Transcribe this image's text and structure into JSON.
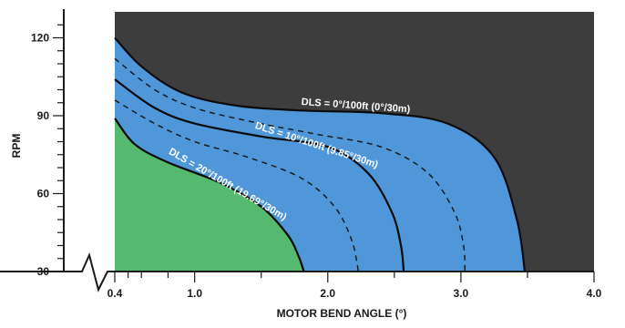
{
  "chart_data": {
    "type": "area",
    "title": "",
    "xlabel": "MOTOR BEND ANGLE (°)",
    "ylabel": "RPM",
    "xlim": [
      0.4,
      4.0
    ],
    "ylim": [
      30,
      130
    ],
    "x_ticks": [
      0.4,
      1.0,
      2.0,
      3.0,
      4.0
    ],
    "x_tick_labels": [
      "0.4",
      "1.0",
      "2.0",
      "3.0",
      "4.0"
    ],
    "y_ticks": [
      30,
      60,
      90,
      120
    ],
    "y_tick_labels": [
      "30",
      "60",
      "90",
      "120"
    ],
    "axis_break": true,
    "colors": {
      "above_curves": "#3d3d3d",
      "between_curves": "#4f97d9",
      "below_curves": "#55b970"
    },
    "series": [
      {
        "name": "DLS = 0°/100ft (0°/30m)",
        "style": "solid",
        "x": [
          0.4,
          0.6,
          0.9,
          1.3,
          1.8,
          2.4,
          2.9,
          3.25,
          3.42,
          3.48
        ],
        "y": [
          120,
          109,
          99,
          94,
          92,
          91,
          87,
          74,
          50,
          30
        ]
      },
      {
        "name": "",
        "style": "dashed",
        "x": [
          0.4,
          0.7,
          1.0,
          1.4,
          1.9,
          2.4,
          2.75,
          2.95,
          3.02,
          3.03
        ],
        "y": [
          112,
          100,
          93,
          88,
          83,
          78,
          68,
          53,
          40,
          30
        ]
      },
      {
        "name": "DLS = 10°/100ft (9.85°/30m)",
        "style": "solid",
        "x": [
          0.4,
          0.7,
          1.0,
          1.5,
          2.0,
          2.3,
          2.48,
          2.55,
          2.57
        ],
        "y": [
          104,
          93,
          87,
          82,
          78,
          68,
          53,
          40,
          30
        ]
      },
      {
        "name": "",
        "style": "dashed",
        "x": [
          0.4,
          0.7,
          1.0,
          1.4,
          1.8,
          2.05,
          2.18,
          2.23
        ],
        "y": [
          96,
          87,
          80,
          74,
          66,
          55,
          42,
          30
        ]
      },
      {
        "name": "DLS = 20°/100ft (19.69°/30m)",
        "style": "solid",
        "x": [
          0.4,
          0.55,
          0.8,
          1.2,
          1.5,
          1.7,
          1.78,
          1.82
        ],
        "y": [
          89,
          79,
          72,
          64,
          55,
          44,
          36,
          30
        ]
      }
    ]
  }
}
